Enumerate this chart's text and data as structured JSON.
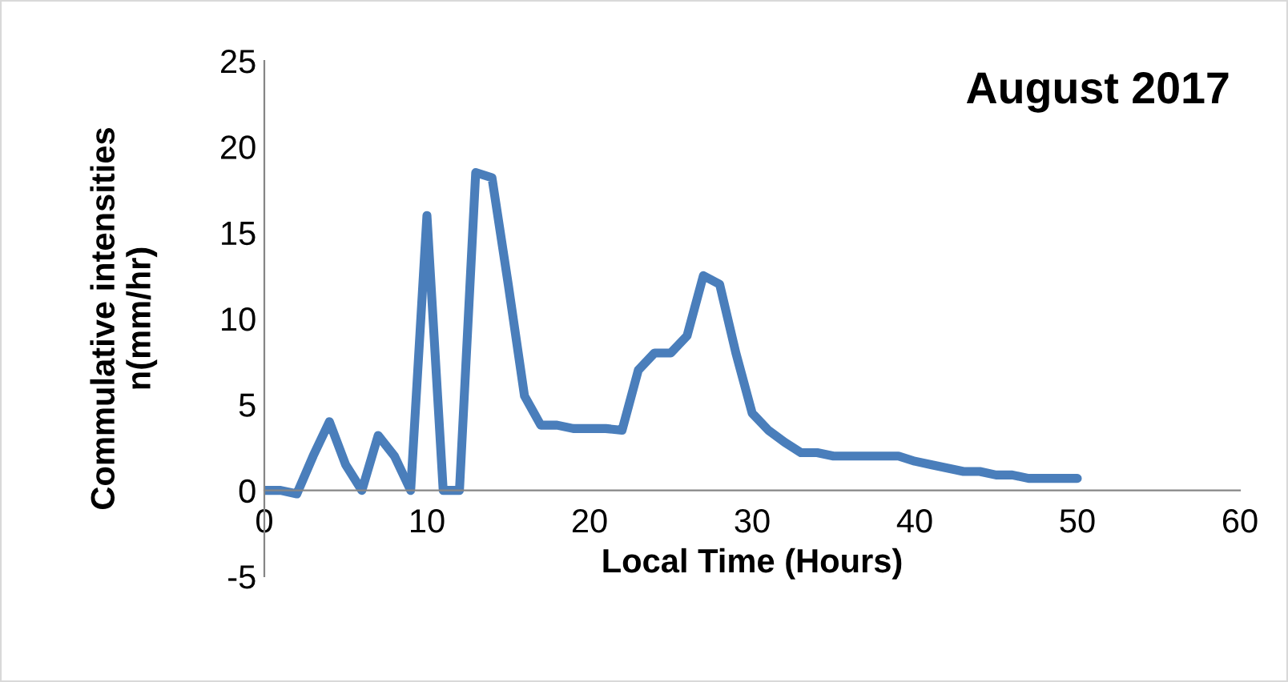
{
  "chart_data": {
    "type": "line",
    "title": "August 2017",
    "xlabel": "Local Time (Hours)",
    "ylabel": "Commulative intensities\nn(mm/hr)",
    "x": [
      0,
      1,
      2,
      3,
      4,
      5,
      6,
      7,
      8,
      9,
      10,
      11,
      12,
      13,
      14,
      15,
      16,
      17,
      18,
      19,
      20,
      21,
      22,
      23,
      24,
      25,
      26,
      27,
      28,
      29,
      30,
      31,
      32,
      33,
      34,
      35,
      36,
      37,
      38,
      39,
      40,
      41,
      42,
      43,
      44,
      45,
      46,
      47,
      48,
      49,
      50
    ],
    "series": [
      {
        "color": "#4a7ebb",
        "values": [
          0,
          0,
          -0.2,
          2,
          4,
          1.5,
          0,
          3.2,
          2,
          0,
          16,
          0,
          0,
          18.5,
          18.2,
          12,
          5.5,
          3.8,
          3.8,
          3.6,
          3.6,
          3.6,
          3.5,
          7,
          8,
          8,
          9,
          12.5,
          12,
          8,
          4.5,
          3.5,
          2.8,
          2.2,
          2.2,
          2,
          2,
          2,
          2,
          2,
          1.7,
          1.5,
          1.3,
          1.1,
          1.1,
          0.9,
          0.9,
          0.7,
          0.7,
          0.7,
          0.7
        ]
      }
    ],
    "xlim": [
      0,
      60
    ],
    "ylim": [
      -5,
      25
    ],
    "xticks": [
      0,
      10,
      20,
      30,
      40,
      50,
      60
    ],
    "yticks": [
      -5,
      0,
      5,
      10,
      15,
      20,
      25
    ],
    "grid": false,
    "marker": "none",
    "line_style": "solid"
  }
}
